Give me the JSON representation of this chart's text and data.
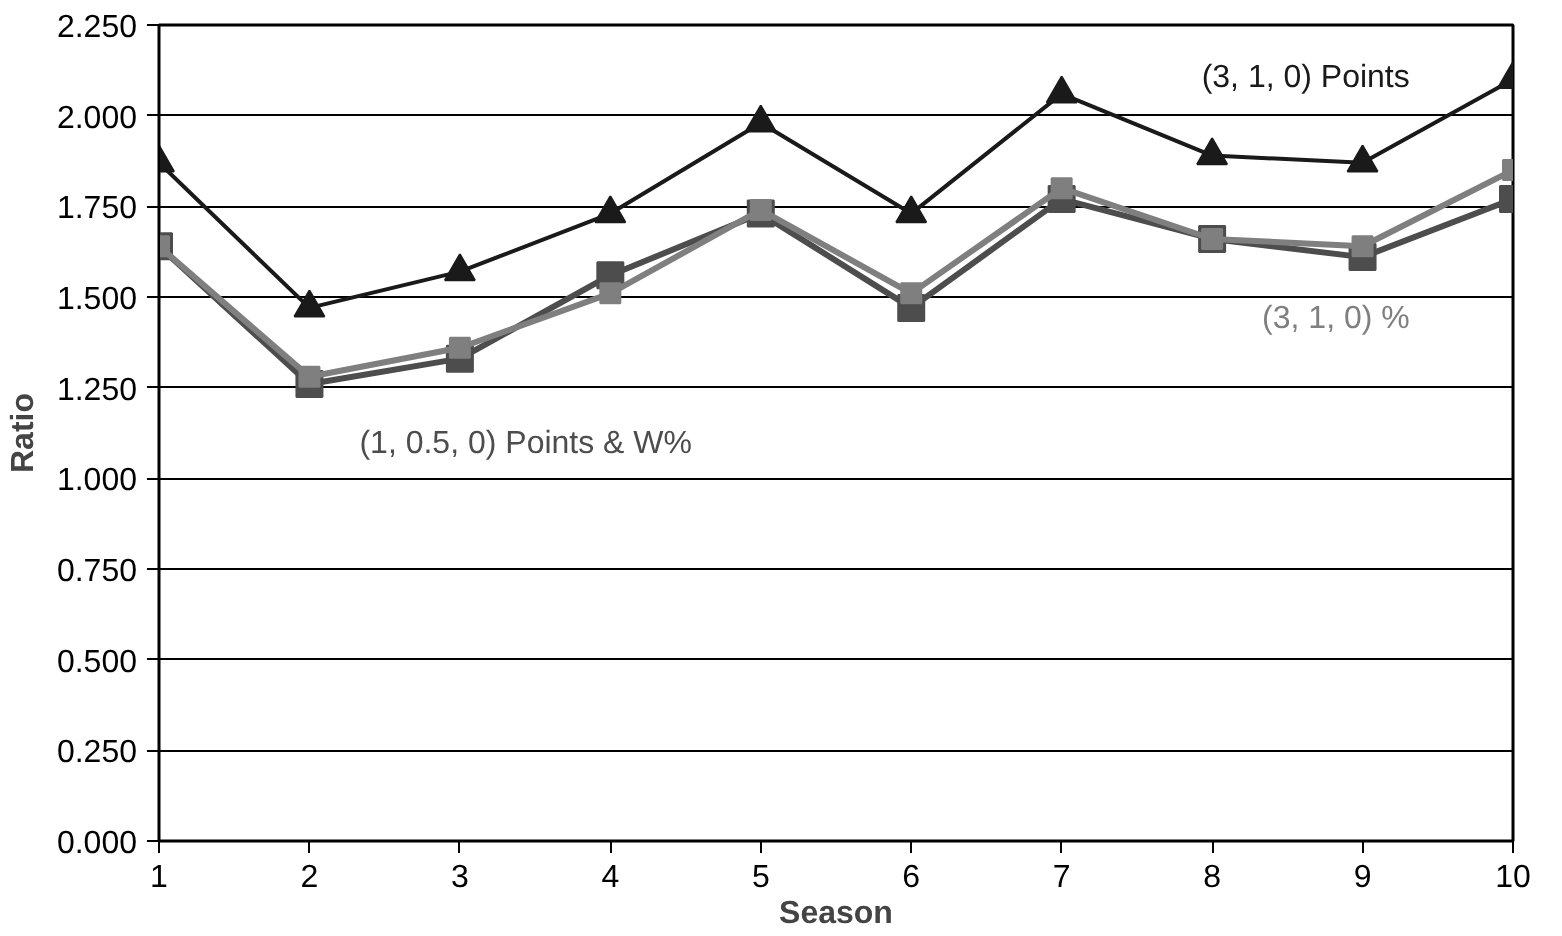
{
  "chart_data": {
    "type": "line",
    "xlabel": "Season",
    "ylabel": "Ratio",
    "x": [
      1,
      2,
      3,
      4,
      5,
      6,
      7,
      8,
      9,
      10
    ],
    "xlim": [
      1,
      10
    ],
    "xticks": [
      1,
      2,
      3,
      4,
      5,
      6,
      7,
      8,
      9,
      10
    ],
    "ylim": [
      0,
      2.25
    ],
    "yticks": [
      {
        "value": 0,
        "label": "0.000"
      },
      {
        "value": 0.25,
        "label": "0.250"
      },
      {
        "value": 0.5,
        "label": "0.500"
      },
      {
        "value": 0.75,
        "label": "0.750"
      },
      {
        "value": 1,
        "label": "1.000"
      },
      {
        "value": 1.25,
        "label": "1.250"
      },
      {
        "value": 1.5,
        "label": "1.500"
      },
      {
        "value": 1.75,
        "label": "1.750"
      },
      {
        "value": 2,
        "label": "2.000"
      },
      {
        "value": 2.25,
        "label": "2.250"
      }
    ],
    "grid": "y",
    "legend": false,
    "line_style": "solid",
    "series": [
      {
        "name": "(3, 1, 0) Points",
        "color": "#1a1a1a",
        "marker": "triangle",
        "values": [
          1.87,
          1.47,
          1.57,
          1.73,
          1.98,
          1.73,
          2.06,
          1.89,
          1.87,
          2.1
        ]
      },
      {
        "name": "(1, 0.5, 0) Points & W%",
        "color": "#4d4d4d",
        "marker": "square",
        "values": [
          1.64,
          1.26,
          1.33,
          1.56,
          1.73,
          1.47,
          1.77,
          1.66,
          1.61,
          1.77
        ]
      },
      {
        "name": "(3, 1, 0) %",
        "color": "#7f7f7f",
        "marker": "square",
        "values": [
          1.64,
          1.28,
          1.36,
          1.51,
          1.74,
          1.51,
          1.8,
          1.66,
          1.64,
          1.85
        ]
      }
    ]
  }
}
